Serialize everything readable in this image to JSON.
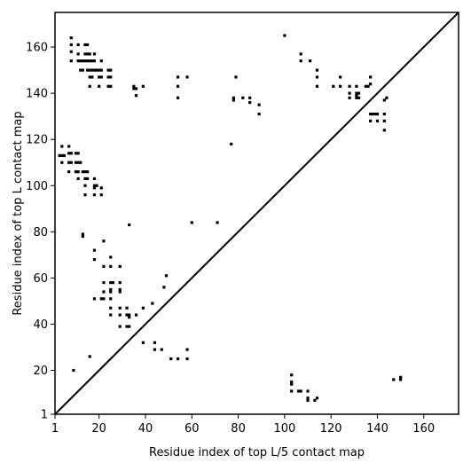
{
  "chart_data": {
    "type": "scatter",
    "xlabel": "Residue index of top L/5 contact map",
    "ylabel": "Residue index of top L contact map",
    "xlim": [
      1,
      175
    ],
    "ylim": [
      1,
      175
    ],
    "x_ticks": [
      1,
      20,
      40,
      60,
      80,
      100,
      120,
      140,
      160
    ],
    "y_ticks": [
      1,
      20,
      40,
      60,
      80,
      100,
      120,
      140,
      160
    ],
    "diagonal": true,
    "grid": false,
    "color": "#000000",
    "series": [
      {
        "points": [
          [
            8,
            164
          ],
          [
            8,
            161
          ],
          [
            8,
            158
          ],
          [
            8,
            154
          ],
          [
            11,
            161
          ],
          [
            11,
            157
          ],
          [
            11,
            154
          ],
          [
            14,
            161
          ],
          [
            15,
            161
          ],
          [
            14,
            157
          ],
          [
            15,
            157
          ],
          [
            16,
            157
          ],
          [
            18,
            157
          ],
          [
            12,
            154
          ],
          [
            13,
            154
          ],
          [
            14,
            154
          ],
          [
            15,
            154
          ],
          [
            16,
            154
          ],
          [
            17,
            154
          ],
          [
            18,
            154
          ],
          [
            21,
            154
          ],
          [
            12,
            150
          ],
          [
            13,
            150
          ],
          [
            15,
            150
          ],
          [
            16,
            150
          ],
          [
            17,
            150
          ],
          [
            18,
            150
          ],
          [
            19,
            150
          ],
          [
            20,
            150
          ],
          [
            21,
            150
          ],
          [
            24,
            150
          ],
          [
            25,
            150
          ],
          [
            16,
            147
          ],
          [
            17,
            147
          ],
          [
            20,
            147
          ],
          [
            21,
            147
          ],
          [
            24,
            147
          ],
          [
            25,
            147
          ],
          [
            16,
            143
          ],
          [
            20,
            143
          ],
          [
            24,
            143
          ],
          [
            25,
            143
          ],
          [
            3,
            113
          ],
          [
            4,
            113
          ],
          [
            5,
            113
          ],
          [
            4,
            117
          ],
          [
            7,
            117
          ],
          [
            7,
            114
          ],
          [
            8,
            114
          ],
          [
            10,
            114
          ],
          [
            11,
            114
          ],
          [
            4,
            110
          ],
          [
            7,
            110
          ],
          [
            8,
            110
          ],
          [
            10,
            110
          ],
          [
            11,
            110
          ],
          [
            12,
            110
          ],
          [
            7,
            106
          ],
          [
            10,
            106
          ],
          [
            11,
            106
          ],
          [
            13,
            106
          ],
          [
            14,
            106
          ],
          [
            15,
            106
          ],
          [
            11,
            103
          ],
          [
            14,
            103
          ],
          [
            15,
            103
          ],
          [
            18,
            103
          ],
          [
            14,
            100
          ],
          [
            18,
            100
          ],
          [
            19,
            100
          ],
          [
            18,
            99
          ],
          [
            21,
            99
          ],
          [
            14,
            96
          ],
          [
            18,
            96
          ],
          [
            21,
            96
          ],
          [
            35,
            143
          ],
          [
            35,
            142
          ],
          [
            36,
            142
          ],
          [
            39,
            143
          ],
          [
            36,
            139
          ],
          [
            54,
            147
          ],
          [
            54,
            143
          ],
          [
            54,
            138
          ],
          [
            58,
            147
          ],
          [
            78,
            138
          ],
          [
            78,
            137
          ],
          [
            79,
            147
          ],
          [
            82,
            138
          ],
          [
            85,
            138
          ],
          [
            85,
            136
          ],
          [
            89,
            135
          ],
          [
            89,
            131
          ],
          [
            77,
            118
          ],
          [
            100,
            165
          ],
          [
            107,
            157
          ],
          [
            107,
            154
          ],
          [
            111,
            154
          ],
          [
            114,
            150
          ],
          [
            114,
            147
          ],
          [
            114,
            143
          ],
          [
            121,
            143
          ],
          [
            124,
            147
          ],
          [
            124,
            143
          ],
          [
            128,
            143
          ],
          [
            128,
            140
          ],
          [
            128,
            138
          ],
          [
            131,
            143
          ],
          [
            131,
            140
          ],
          [
            131,
            139
          ],
          [
            131,
            138
          ],
          [
            132,
            140
          ],
          [
            132,
            138
          ],
          [
            135,
            143
          ],
          [
            136,
            143
          ],
          [
            137,
            147
          ],
          [
            137,
            144
          ],
          [
            137,
            131
          ],
          [
            138,
            131
          ],
          [
            139,
            131
          ],
          [
            140,
            131
          ],
          [
            137,
            128
          ],
          [
            140,
            128
          ],
          [
            143,
            131
          ],
          [
            143,
            128
          ],
          [
            143,
            124
          ],
          [
            143,
            137
          ],
          [
            144,
            138
          ],
          [
            60,
            84
          ],
          [
            71,
            84
          ],
          [
            33,
            83
          ],
          [
            13,
            79
          ],
          [
            13,
            78
          ],
          [
            22,
            76
          ],
          [
            18,
            72
          ],
          [
            18,
            68
          ],
          [
            22,
            65
          ],
          [
            25,
            69
          ],
          [
            25,
            65
          ],
          [
            29,
            65
          ],
          [
            22,
            58
          ],
          [
            25,
            58
          ],
          [
            26,
            58
          ],
          [
            29,
            58
          ],
          [
            22,
            54
          ],
          [
            25,
            54
          ],
          [
            25,
            55
          ],
          [
            29,
            55
          ],
          [
            29,
            54
          ],
          [
            18,
            51
          ],
          [
            21,
            51
          ],
          [
            22,
            51
          ],
          [
            25,
            51
          ],
          [
            25,
            47
          ],
          [
            25,
            44
          ],
          [
            29,
            47
          ],
          [
            29,
            44
          ],
          [
            32,
            47
          ],
          [
            32,
            44
          ],
          [
            33,
            44
          ],
          [
            33,
            43
          ],
          [
            36,
            44
          ],
          [
            39,
            47
          ],
          [
            43,
            49
          ],
          [
            48,
            56
          ],
          [
            49,
            61
          ],
          [
            29,
            39
          ],
          [
            32,
            39
          ],
          [
            33,
            39
          ],
          [
            39,
            32
          ],
          [
            44,
            32
          ],
          [
            44,
            29
          ],
          [
            47,
            29
          ],
          [
            51,
            25
          ],
          [
            54,
            25
          ],
          [
            58,
            29
          ],
          [
            58,
            25
          ],
          [
            9,
            20
          ],
          [
            16,
            26
          ],
          [
            103,
            18
          ],
          [
            103,
            15
          ],
          [
            103,
            14
          ],
          [
            103,
            11
          ],
          [
            106,
            11
          ],
          [
            107,
            11
          ],
          [
            110,
            11
          ],
          [
            110,
            8
          ],
          [
            110,
            7
          ],
          [
            113,
            7
          ],
          [
            114,
            8
          ],
          [
            147,
            16
          ],
          [
            150,
            17
          ],
          [
            150,
            16
          ]
        ]
      }
    ]
  }
}
